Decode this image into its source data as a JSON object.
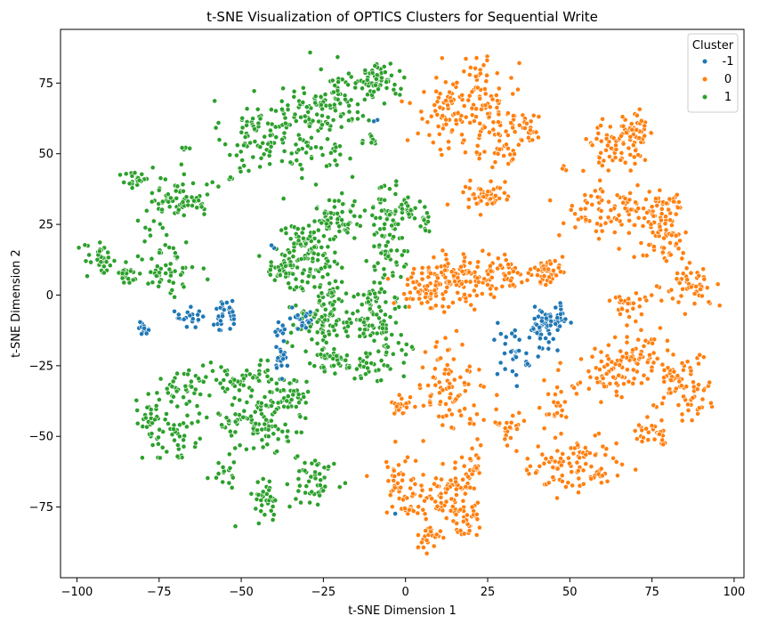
{
  "chart_data": {
    "type": "scatter",
    "title": "t-SNE Visualization of OPTICS Clusters for Sequential Write",
    "xlabel": "t-SNE Dimension 1",
    "ylabel": "t-SNE Dimension 2",
    "xlim": [
      -105,
      103
    ],
    "ylim": [
      -100,
      94
    ],
    "xticks": [
      -100,
      -75,
      -50,
      -25,
      0,
      25,
      50,
      75,
      100
    ],
    "yticks": [
      -75,
      -50,
      -25,
      0,
      25,
      50,
      75
    ],
    "grid": false,
    "legend": {
      "title": "Cluster",
      "placement": "top-right"
    },
    "series": [
      {
        "name": "-1",
        "color": "#1f77b4",
        "clusters": [
          {
            "cx": -80,
            "cy": -12,
            "sx": 1.2,
            "sy": 1.5,
            "n": 14
          },
          {
            "cx": -66,
            "cy": -8,
            "sx": 2.2,
            "sy": 1.6,
            "n": 20
          },
          {
            "cx": -55,
            "cy": -7,
            "sx": 2.0,
            "sy": 3.0,
            "n": 32
          },
          {
            "cx": -38,
            "cy": -20,
            "sx": 1.2,
            "sy": 4.0,
            "n": 22
          },
          {
            "cx": -34,
            "cy": -9,
            "sx": 3.0,
            "sy": 2.0,
            "n": 26
          },
          {
            "cx": -40,
            "cy": 17,
            "sx": 0.6,
            "sy": 0.6,
            "n": 2
          },
          {
            "cx": -9,
            "cy": 62,
            "sx": 0.5,
            "sy": 0.5,
            "n": 2
          },
          {
            "cx": 32,
            "cy": -20,
            "sx": 2.0,
            "sy": 5.0,
            "n": 26
          },
          {
            "cx": 37,
            "cy": -24,
            "sx": 0.8,
            "sy": 1.2,
            "n": 3
          },
          {
            "cx": 42,
            "cy": -12,
            "sx": 2.0,
            "sy": 3.5,
            "n": 36
          },
          {
            "cx": 45,
            "cy": -9,
            "sx": 2.5,
            "sy": 2.5,
            "n": 40
          },
          {
            "cx": -3,
            "cy": -77,
            "sx": 0.5,
            "sy": 0.5,
            "n": 1
          }
        ]
      },
      {
        "name": "0",
        "color": "#ff7f0e",
        "clusters": [
          {
            "cx": 12,
            "cy": 64,
            "sx": 5.0,
            "sy": 7.0,
            "n": 70
          },
          {
            "cx": 22,
            "cy": 68,
            "sx": 4.0,
            "sy": 10.0,
            "n": 70
          },
          {
            "cx": 30,
            "cy": 58,
            "sx": 3.5,
            "sy": 8.0,
            "n": 60
          },
          {
            "cx": 24,
            "cy": 35,
            "sx": 3.5,
            "sy": 3.0,
            "n": 50
          },
          {
            "cx": 38,
            "cy": 60,
            "sx": 1.5,
            "sy": 5.0,
            "n": 16
          },
          {
            "cx": 48,
            "cy": 45,
            "sx": 0.6,
            "sy": 0.6,
            "n": 3
          },
          {
            "cx": 62,
            "cy": 52,
            "sx": 4.0,
            "sy": 5.0,
            "n": 50
          },
          {
            "cx": 70,
            "cy": 55,
            "sx": 3.0,
            "sy": 5.0,
            "n": 50
          },
          {
            "cx": 60,
            "cy": 30,
            "sx": 7.0,
            "sy": 5.0,
            "n": 60
          },
          {
            "cx": 72,
            "cy": 28,
            "sx": 5.0,
            "sy": 5.0,
            "n": 50
          },
          {
            "cx": 78,
            "cy": 20,
            "sx": 4.0,
            "sy": 5.0,
            "n": 50
          },
          {
            "cx": 82,
            "cy": 33,
            "sx": 2.0,
            "sy": 3.0,
            "n": 14
          },
          {
            "cx": 87,
            "cy": 3,
            "sx": 4.0,
            "sy": 3.0,
            "n": 50
          },
          {
            "cx": 68,
            "cy": -3,
            "sx": 3.0,
            "sy": 2.5,
            "n": 24
          },
          {
            "cx": 6,
            "cy": 2,
            "sx": 5.0,
            "sy": 4.0,
            "n": 60
          },
          {
            "cx": 18,
            "cy": 5,
            "sx": 7.0,
            "sy": 5.0,
            "n": 90
          },
          {
            "cx": 30,
            "cy": 8,
            "sx": 5.0,
            "sy": 3.0,
            "n": 50
          },
          {
            "cx": 43,
            "cy": 8,
            "sx": 2.5,
            "sy": 2.0,
            "n": 40
          },
          {
            "cx": 12,
            "cy": -32,
            "sx": 5.0,
            "sy": 8.0,
            "n": 90
          },
          {
            "cx": -1,
            "cy": -39,
            "sx": 1.5,
            "sy": 1.5,
            "n": 22
          },
          {
            "cx": 32,
            "cy": -46,
            "sx": 2.5,
            "sy": 3.0,
            "n": 22
          },
          {
            "cx": 46,
            "cy": -40,
            "sx": 2.0,
            "sy": 5.0,
            "n": 22
          },
          {
            "cx": 63,
            "cy": -27,
            "sx": 5.0,
            "sy": 5.0,
            "n": 70
          },
          {
            "cx": 70,
            "cy": -20,
            "sx": 4.0,
            "sy": 5.0,
            "n": 40
          },
          {
            "cx": 82,
            "cy": -28,
            "sx": 4.0,
            "sy": 6.0,
            "n": 55
          },
          {
            "cx": 87,
            "cy": -37,
            "sx": 3.0,
            "sy": 4.0,
            "n": 25
          },
          {
            "cx": 75,
            "cy": -50,
            "sx": 3.0,
            "sy": 4.0,
            "n": 30
          },
          {
            "cx": 45,
            "cy": -59,
            "sx": 6.0,
            "sy": 5.0,
            "n": 55
          },
          {
            "cx": 58,
            "cy": -60,
            "sx": 5.0,
            "sy": 4.0,
            "n": 45
          },
          {
            "cx": -2,
            "cy": -67,
            "sx": 3.5,
            "sy": 6.0,
            "n": 45
          },
          {
            "cx": 14,
            "cy": -70,
            "sx": 4.0,
            "sy": 5.0,
            "n": 70
          },
          {
            "cx": 20,
            "cy": -60,
            "sx": 1.5,
            "sy": 3.0,
            "n": 20
          },
          {
            "cx": 7,
            "cy": -86,
            "sx": 1.8,
            "sy": 2.5,
            "n": 26
          },
          {
            "cx": 18,
            "cy": -80,
            "sx": 2.0,
            "sy": 3.0,
            "n": 30
          },
          {
            "cx": 2,
            "cy": -76,
            "sx": 1.5,
            "sy": 1.0,
            "n": 12
          }
        ]
      },
      {
        "name": "1",
        "color": "#2ca02c",
        "clusters": [
          {
            "cx": -46,
            "cy": 57,
            "sx": 5.0,
            "sy": 6.0,
            "n": 70
          },
          {
            "cx": -29,
            "cy": 60,
            "sx": 7.0,
            "sy": 10.0,
            "n": 110
          },
          {
            "cx": -20,
            "cy": 68,
            "sx": 5.0,
            "sy": 6.0,
            "n": 60
          },
          {
            "cx": -8,
            "cy": 76,
            "sx": 3.0,
            "sy": 3.0,
            "n": 60
          },
          {
            "cx": -10,
            "cy": 55,
            "sx": 1.2,
            "sy": 1.5,
            "n": 12
          },
          {
            "cx": -67,
            "cy": 52,
            "sx": 1.0,
            "sy": 1.0,
            "n": 5
          },
          {
            "cx": -82,
            "cy": 41,
            "sx": 2.0,
            "sy": 2.0,
            "n": 20
          },
          {
            "cx": -75,
            "cy": 32,
            "sx": 4.0,
            "sy": 5.0,
            "n": 35
          },
          {
            "cx": -65,
            "cy": 35,
            "sx": 3.0,
            "sy": 4.0,
            "n": 35
          },
          {
            "cx": -93,
            "cy": 12,
            "sx": 2.5,
            "sy": 3.0,
            "n": 35
          },
          {
            "cx": -85,
            "cy": 8,
            "sx": 2.5,
            "sy": 2.0,
            "n": 25
          },
          {
            "cx": -72,
            "cy": 10,
            "sx": 4.0,
            "sy": 5.0,
            "n": 55
          },
          {
            "cx": -30,
            "cy": 14,
            "sx": 5.0,
            "sy": 6.0,
            "n": 120
          },
          {
            "cx": -38,
            "cy": 8,
            "sx": 2.0,
            "sy": 2.0,
            "n": 26
          },
          {
            "cx": -19,
            "cy": 27,
            "sx": 3.0,
            "sy": 4.0,
            "n": 45
          },
          {
            "cx": -25,
            "cy": 28,
            "sx": 1.5,
            "sy": 3.0,
            "n": 16
          },
          {
            "cx": -5,
            "cy": 30,
            "sx": 2.5,
            "sy": 5.0,
            "n": 45
          },
          {
            "cx": 1,
            "cy": 31,
            "sx": 1.5,
            "sy": 2.0,
            "n": 22
          },
          {
            "cx": 6,
            "cy": 26,
            "sx": 1.0,
            "sy": 2.0,
            "n": 12
          },
          {
            "cx": -5,
            "cy": 15,
            "sx": 3.0,
            "sy": 5.0,
            "n": 45
          },
          {
            "cx": -25,
            "cy": -10,
            "sx": 5.0,
            "sy": 5.0,
            "n": 80
          },
          {
            "cx": -12,
            "cy": -10,
            "sx": 3.0,
            "sy": 4.0,
            "n": 45
          },
          {
            "cx": -5,
            "cy": -15,
            "sx": 2.5,
            "sy": 6.0,
            "n": 40
          },
          {
            "cx": -22,
            "cy": -24,
            "sx": 4.0,
            "sy": 2.5,
            "n": 40
          },
          {
            "cx": -10,
            "cy": -25,
            "sx": 2.5,
            "sy": 2.0,
            "n": 22
          },
          {
            "cx": -10,
            "cy": 0,
            "sx": 2.0,
            "sy": 2.0,
            "n": 20
          },
          {
            "cx": -22,
            "cy": 0,
            "sx": 2.0,
            "sy": 1.5,
            "n": 16
          },
          {
            "cx": -68,
            "cy": -32,
            "sx": 4.0,
            "sy": 4.0,
            "n": 30
          },
          {
            "cx": -55,
            "cy": -30,
            "sx": 3.0,
            "sy": 3.0,
            "n": 25
          },
          {
            "cx": -45,
            "cy": -28,
            "sx": 3.0,
            "sy": 2.0,
            "n": 22
          },
          {
            "cx": -70,
            "cy": -48,
            "sx": 5.0,
            "sy": 6.0,
            "n": 55
          },
          {
            "cx": -78,
            "cy": -42,
            "sx": 2.0,
            "sy": 3.0,
            "n": 22
          },
          {
            "cx": -42,
            "cy": -45,
            "sx": 6.0,
            "sy": 7.0,
            "n": 100
          },
          {
            "cx": -53,
            "cy": -45,
            "sx": 2.0,
            "sy": 3.0,
            "n": 20
          },
          {
            "cx": -35,
            "cy": -35,
            "sx": 3.0,
            "sy": 3.0,
            "n": 30
          },
          {
            "cx": -27,
            "cy": -65,
            "sx": 3.5,
            "sy": 4.0,
            "n": 45
          },
          {
            "cx": -42,
            "cy": -72,
            "sx": 2.5,
            "sy": 3.5,
            "n": 35
          },
          {
            "cx": -54,
            "cy": -63,
            "sx": 1.5,
            "sy": 2.0,
            "n": 14
          },
          {
            "cx": -60,
            "cy": 38,
            "sx": 1.0,
            "sy": 1.0,
            "n": 4
          },
          {
            "cx": -53,
            "cy": 40,
            "sx": 0.8,
            "sy": 0.8,
            "n": 3
          },
          {
            "cx": -50,
            "cy": 43,
            "sx": 1.0,
            "sy": 1.0,
            "n": 4
          }
        ]
      }
    ]
  }
}
